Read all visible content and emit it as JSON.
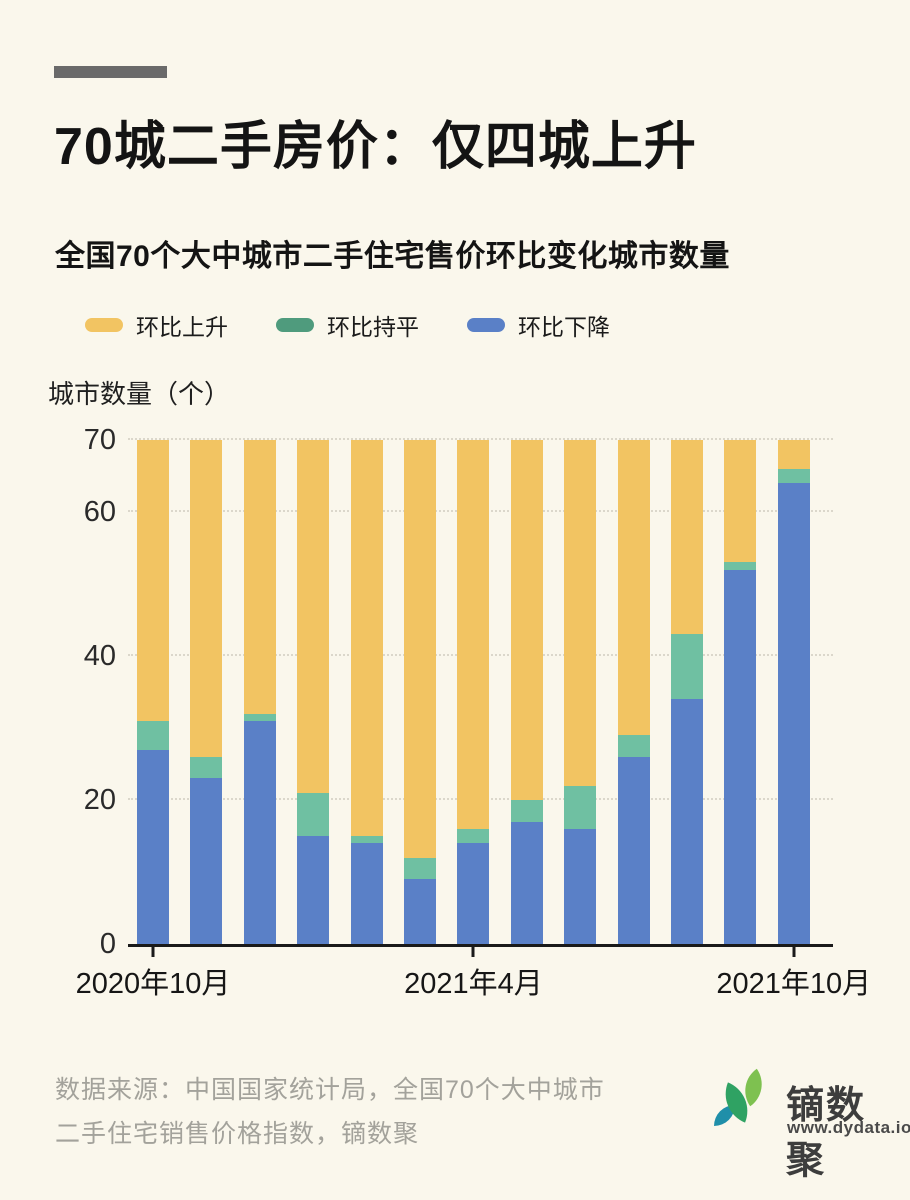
{
  "page": {
    "background": "#FAF7EC",
    "accent_color": "#6A6A6A"
  },
  "header": {
    "title": "70城二手房价：仅四城上升",
    "subtitle": "全国70个大中城市二手住宅售价环比变化城市数量"
  },
  "legend": [
    {
      "label": "环比上升",
      "color": "#F2C462"
    },
    {
      "label": "环比持平",
      "color": "#4F9B7D"
    },
    {
      "label": "环比下降",
      "color": "#5A80C7"
    }
  ],
  "chart_data": {
    "type": "bar",
    "stacked": true,
    "title": "全国70个大中城市二手住宅售价环比变化城市数量",
    "ylabel": "城市数量（个）",
    "xlabel": "",
    "ylim": [
      0,
      70
    ],
    "yticks": [
      0,
      20,
      40,
      60,
      70
    ],
    "gridline_values": [
      20,
      40,
      60,
      70
    ],
    "grid": "dotted",
    "legend_position": "top",
    "categories": [
      "2020年10月",
      "2020年11月",
      "2020年12月",
      "2021年1月",
      "2021年2月",
      "2021年3月",
      "2021年4月",
      "2021年5月",
      "2021年6月",
      "2021年7月",
      "2021年8月",
      "2021年9月",
      "2021年10月"
    ],
    "x_tick_labels": [
      {
        "index": 0,
        "label": "2020年10月"
      },
      {
        "index": 6,
        "label": "2021年4月"
      },
      {
        "index": 12,
        "label": "2021年10月"
      }
    ],
    "series": [
      {
        "name": "环比下降",
        "color": "#5A80C7",
        "values": [
          27,
          23,
          31,
          15,
          14,
          9,
          14,
          17,
          16,
          26,
          34,
          52,
          64
        ]
      },
      {
        "name": "环比持平",
        "color": "#6FC0A2",
        "values": [
          4,
          3,
          1,
          6,
          1,
          3,
          2,
          3,
          6,
          3,
          9,
          1,
          2
        ]
      },
      {
        "name": "环比上升",
        "color": "#F2C462",
        "values": [
          39,
          44,
          38,
          49,
          55,
          58,
          54,
          50,
          48,
          41,
          27,
          17,
          4
        ]
      }
    ]
  },
  "footer": {
    "source_line1": "数据来源：中国国家统计局，全国70个大中城市",
    "source_line2": "二手住宅销售价格指数，镝数聚",
    "logo_text": "镝数聚",
    "logo_url": "www.dydata.io"
  }
}
